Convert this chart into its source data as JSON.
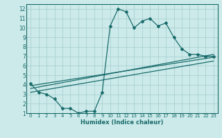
{
  "xlabel": "Humidex (Indice chaleur)",
  "bg_color": "#cceaea",
  "grid_color": "#aad0d0",
  "line_color": "#1a6b6b",
  "xlim": [
    -0.5,
    23.5
  ],
  "ylim": [
    1,
    12.5
  ],
  "xticks": [
    0,
    1,
    2,
    3,
    4,
    5,
    6,
    7,
    8,
    9,
    10,
    11,
    12,
    13,
    14,
    15,
    16,
    17,
    18,
    19,
    20,
    21,
    22,
    23
  ],
  "yticks": [
    1,
    2,
    3,
    4,
    5,
    6,
    7,
    8,
    9,
    10,
    11,
    12
  ],
  "series1_x": [
    0,
    1,
    2,
    3,
    4,
    5,
    6,
    7,
    8,
    9,
    10,
    11,
    12,
    13,
    14,
    15,
    16,
    17,
    18,
    19,
    20,
    21,
    22,
    23
  ],
  "series1_y": [
    4.1,
    3.2,
    3.0,
    2.5,
    1.5,
    1.5,
    1.0,
    1.2,
    1.2,
    3.2,
    10.2,
    12.0,
    11.7,
    10.0,
    10.7,
    11.0,
    10.2,
    10.5,
    9.0,
    7.8,
    7.2,
    7.2,
    7.0,
    7.0
  ],
  "series2_x": [
    0,
    23
  ],
  "series2_y": [
    3.6,
    7.2
  ],
  "series3_x": [
    0,
    23
  ],
  "series3_y": [
    3.2,
    6.5
  ],
  "series4_x": [
    0,
    23
  ],
  "series4_y": [
    3.9,
    6.9
  ]
}
